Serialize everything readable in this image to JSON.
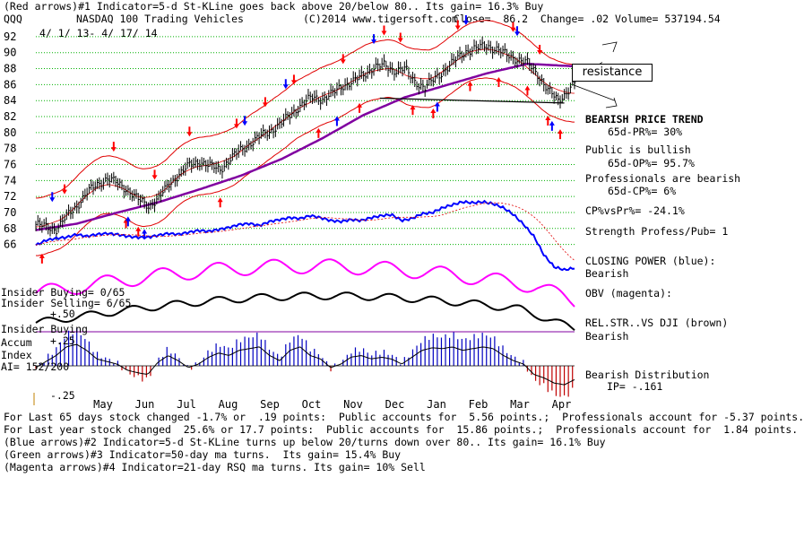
{
  "header": {
    "line1": "(Red arrows)#1 Indicator=5-d St-KLine goes back above 20/below 80.. Its gain= 16.3% Buy",
    "symbol": "QQQ",
    "name": "NASDAQ 100 Trading Vehicles",
    "copyright": "(C)2014 www.tigersoft.com",
    "quote": "Close=  86.2  Change= .02 Volume= 537194.54",
    "date_range": "4/ 1/ 13- 4/ 17/ 14"
  },
  "annotations": {
    "resistance": "resistance"
  },
  "right_panel": {
    "trend_title": "BEARISH PRICE TREND",
    "pr": "65d-PR%= 30%",
    "public": "Public is bullish",
    "op": "65d-OP%= 95.7%",
    "pros": "Professionals are bearish",
    "cp": "65d-CP%= 6%",
    "cpvspr": "CP%vsPr%= -24.1%",
    "strength": "Strength Profess/Pub= 1",
    "closing_power": "CLOSING POWER (blue):",
    "closing_power_state": "Bearish",
    "obv": "OBV (magenta):",
    "relstr": "REL.STR..VS DJI (brown)",
    "relstr_state": "Bearish",
    "distribution": "Bearish Distribution",
    "ip": "IP= -.161"
  },
  "left_panel": {
    "insider_buying_ratio": "Insider Buying= 0/65",
    "insider_selling_ratio": "Insider Selling= 6/65",
    "plus50": "+.50",
    "insider_buying": "Insider Buying",
    "accum": "Accum",
    "plus25": "+.25",
    "index": "Index",
    "ai": "AI= 152/200",
    "minus25": "-.25"
  },
  "footer": {
    "line1": "For Last 65 days stock changed -1.7% or  .19 points:  Public accounts for  5.56 points.;  Professionals account for -5.37 points.",
    "line2": "For Last year stock changed  25.6% or 17.7 points:  Public accounts for  15.86 points.;  Professionals account for  1.84 points.",
    "line3": "(Blue arrows)#2 Indicator=5-d St-KLine turns up below 20/turns down over 80.. Its gain= 16.1% Buy",
    "line4": "(Green arrows)#3 Indicator=50-day ma turns.  Its gain= 15.4% Buy",
    "line5": "(Magenta arrows)#4 Indicator=21-day RSQ ma turns. Its gain= 10% Sell"
  },
  "colors": {
    "price_bars": "#000000",
    "bands": "#e00000",
    "ma50": "#8000a0",
    "closing_power": "#0000ff",
    "obv": "#ff00ff",
    "relstr": "#000000",
    "accum_positive": "#0000c0",
    "accum_negative": "#c00000",
    "gridline": "#00b000",
    "red_arrow": "#ff0000",
    "blue_arrow": "#0000ff"
  },
  "chart_data": {
    "type": "line",
    "x_labels": [
      "May",
      "Jun",
      "Jul",
      "Aug",
      "Sep",
      "Oct",
      "Nov",
      "Dec",
      "Jan",
      "Feb",
      "Mar",
      "Apr"
    ],
    "y_ticks": [
      66,
      68,
      70,
      72,
      74,
      76,
      78,
      80,
      82,
      84,
      86,
      88,
      90,
      92
    ],
    "ylim": [
      64.5,
      93
    ],
    "grid": true,
    "price_series": {
      "name": "QQQ",
      "x": [
        0,
        5,
        10,
        15,
        20,
        25,
        30,
        35,
        40,
        45,
        50,
        55,
        60,
        65,
        70,
        75,
        80,
        85,
        90,
        95,
        100,
        105,
        110,
        115,
        120,
        125,
        130,
        135,
        140,
        145,
        150,
        155,
        160,
        165,
        170,
        175,
        180,
        185,
        190,
        195,
        200,
        205,
        210,
        215,
        220,
        225,
        230,
        235,
        240,
        245,
        250,
        255,
        260,
        263
      ],
      "y": [
        68.5,
        68.2,
        67.9,
        69.5,
        70.8,
        72.5,
        73.5,
        74.3,
        73.6,
        72.8,
        71.6,
        70.8,
        71.8,
        73.5,
        74.8,
        75.9,
        76.4,
        75.8,
        75.4,
        76.7,
        77.8,
        78.7,
        79.6,
        80.3,
        81.2,
        82.4,
        83.6,
        84.4,
        84.2,
        84.9,
        85.9,
        86.4,
        87.2,
        88.2,
        88.4,
        87.8,
        88.0,
        86.4,
        85.6,
        86.8,
        87.9,
        89.1,
        90.2,
        90.5,
        90.9,
        90.4,
        89.7,
        89.2,
        88.7,
        87.3,
        85.3,
        84.0,
        85.3,
        86.2
      ]
    },
    "ma50": {
      "name": "50-day ma",
      "x": [
        0,
        20,
        40,
        60,
        80,
        100,
        120,
        140,
        160,
        180,
        200,
        220,
        240,
        263
      ],
      "y": [
        67.8,
        68.6,
        70.0,
        71.3,
        72.9,
        74.6,
        76.7,
        79.3,
        82.2,
        84.4,
        85.9,
        87.4,
        88.6,
        88.3
      ]
    },
    "band_offsets": {
      "upper": 3.6,
      "lower": -3.6
    },
    "closing_power_norm": [
      0.55,
      0.6,
      0.62,
      0.63,
      0.66,
      0.64,
      0.66,
      0.67,
      0.66,
      0.64,
      0.63,
      0.63,
      0.65,
      0.67,
      0.66,
      0.68,
      0.7,
      0.69,
      0.71,
      0.73,
      0.76,
      0.77,
      0.75,
      0.79,
      0.81,
      0.83,
      0.82,
      0.85,
      0.83,
      0.8,
      0.79,
      0.81,
      0.8,
      0.83,
      0.85,
      0.86,
      0.8,
      0.82,
      0.87,
      0.88,
      0.93,
      0.96,
      0.99,
      0.98,
      0.99,
      0.97,
      0.93,
      0.86,
      0.76,
      0.64,
      0.45,
      0.33,
      0.3,
      0.32
    ],
    "accum_index": [
      -0.02,
      0.05,
      0.12,
      0.22,
      0.25,
      0.18,
      0.08,
      0.05,
      0.02,
      -0.05,
      -0.08,
      -0.1,
      0.04,
      0.12,
      0.06,
      -0.02,
      0.02,
      0.1,
      0.15,
      0.12,
      0.18,
      0.2,
      0.22,
      0.12,
      0.06,
      0.18,
      0.22,
      0.12,
      0.08,
      -0.02,
      0.02,
      0.1,
      0.12,
      0.08,
      0.1,
      0.08,
      0.02,
      0.1,
      0.18,
      0.21,
      0.2,
      0.22,
      0.18,
      0.2,
      0.22,
      0.2,
      0.12,
      0.06,
      0.02,
      -0.1,
      -0.14,
      -0.2,
      -0.22,
      -0.16
    ]
  }
}
